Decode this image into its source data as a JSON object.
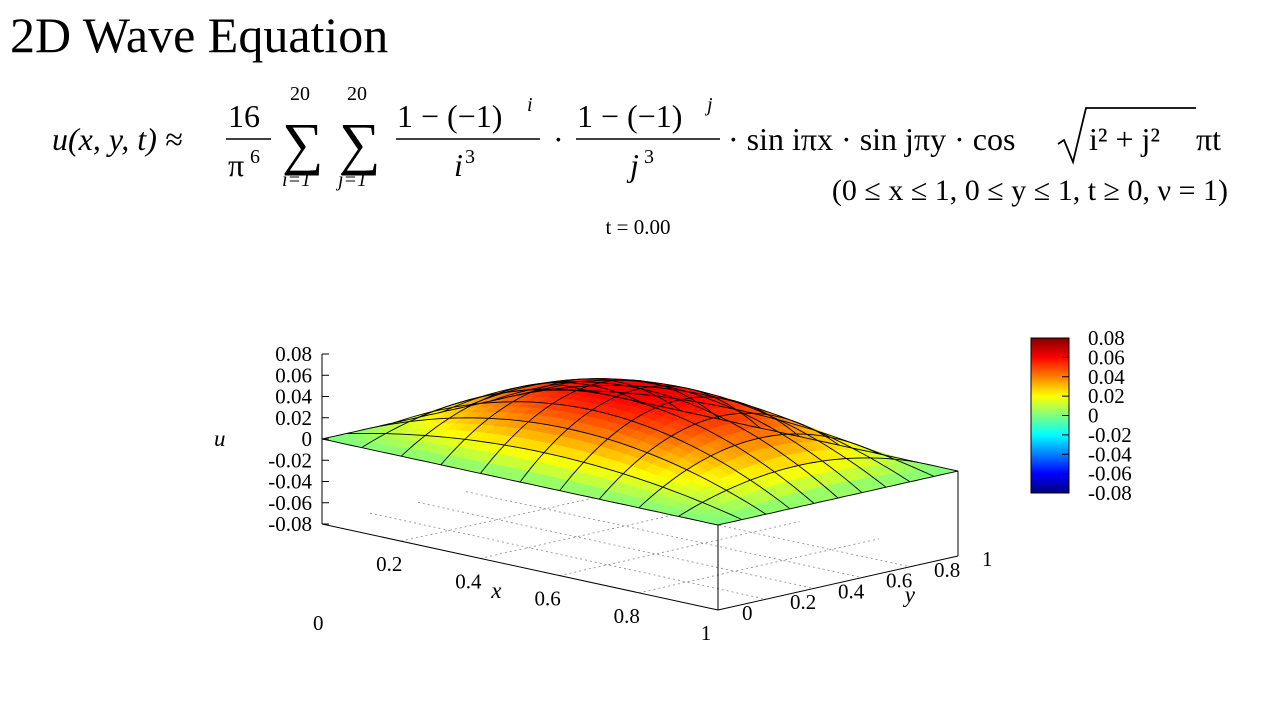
{
  "header": {
    "title": "2D Wave Equation"
  },
  "formula": {
    "lhs": "u(x, y, t) ≈",
    "frac_num": "16",
    "frac_den": "π",
    "frac_den_exp": "6",
    "sum_upper": "20",
    "sum_i_lower": "i=1",
    "sum_j_lower": "j=1",
    "term_i_num": "1 − (−1)",
    "term_i_exp": "i",
    "term_i_den": "i",
    "term_i_den_exp": "3",
    "term_j_num": "1 − (−1)",
    "term_j_exp": "j",
    "term_j_den": "j",
    "term_j_den_exp": "3",
    "dot": "·",
    "trig_part": "· sin iπx · sin jπy · cos",
    "sqrt_arg": "i² + j²",
    "tail": "πt",
    "conditions": "(0 ≤ x ≤ 1,  0 ≤ y ≤ 1,  t ≥ 0,  ν = 1)"
  },
  "chart_data": {
    "type": "surface",
    "time_label": "t = 0.00",
    "function": "u(x,y,0) = (16/π^6) Σ_{i=1..20} Σ_{j=1..20} (1-(-1)^i)/i^3 · (1-(-1)^j)/j^3 · sin(iπx) · sin(jπy)",
    "terms": 20,
    "grid_lines": 10,
    "xlabel": "x",
    "ylabel": "y",
    "zlabel": "u",
    "xlim": [
      0,
      1
    ],
    "ylim": [
      0,
      1
    ],
    "zlim": [
      -0.08,
      0.08
    ],
    "x_ticks": [
      "0",
      "0.2",
      "0.4",
      "0.6",
      "0.8",
      "1"
    ],
    "y_ticks": [
      "0",
      "0.2",
      "0.4",
      "0.6",
      "0.8",
      "1"
    ],
    "z_ticks": [
      "0.08",
      "0.06",
      "0.04",
      "0.02",
      "0",
      "-0.02",
      "-0.04",
      "-0.06",
      "-0.08"
    ],
    "colorbar_ticks": [
      "0.08",
      "0.06",
      "0.04",
      "0.02",
      "0",
      "-0.02",
      "-0.04",
      "-0.06",
      "-0.08"
    ],
    "colormap": [
      "#00007f",
      "#0000ff",
      "#007fff",
      "#00ffff",
      "#7fff7f",
      "#ffff00",
      "#ff7f00",
      "#ff0000",
      "#7f0000"
    ],
    "grid": true,
    "legend_position": "right"
  }
}
